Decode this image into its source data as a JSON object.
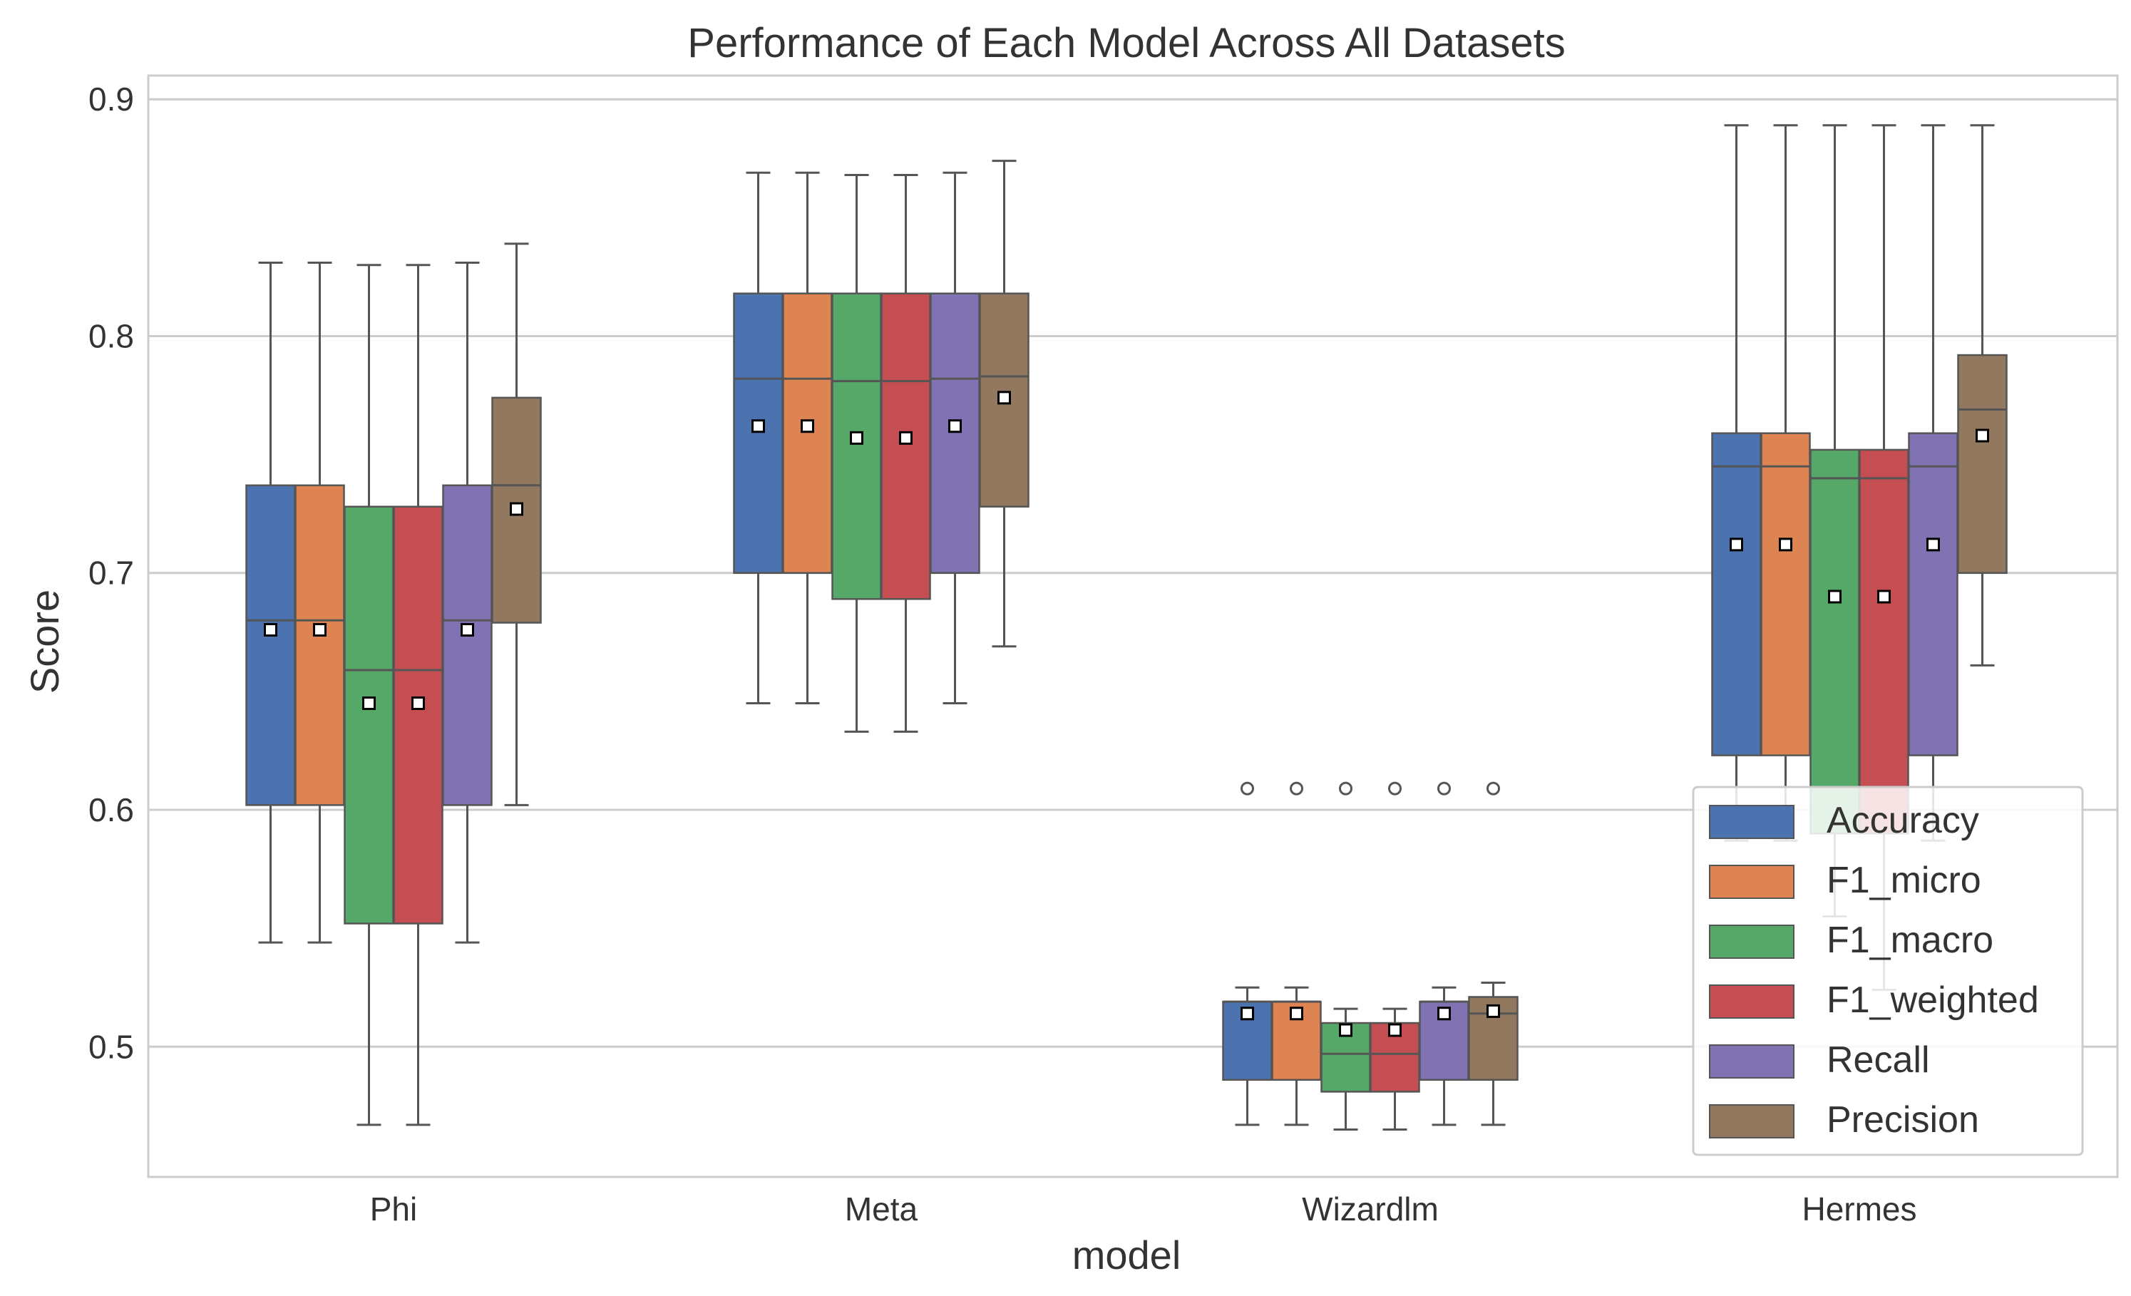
{
  "chart_data": {
    "type": "box",
    "title": "Performance of Each Model Across All Datasets",
    "xlabel": "model",
    "ylabel": "Score",
    "ylim": [
      0.445,
      0.91
    ],
    "yticks": [
      0.5,
      0.6,
      0.7,
      0.8,
      0.9
    ],
    "ytick_labels": [
      "0.5",
      "0.6",
      "0.7",
      "0.8",
      "0.9"
    ],
    "grid": true,
    "legend_position": "bottom-right",
    "categories": [
      "Phi",
      "Meta",
      "Wizardlm",
      "Hermes"
    ],
    "series": [
      {
        "name": "Accuracy",
        "color": "#4c72b0",
        "stats": [
          {
            "whislo": 0.544,
            "q1": 0.602,
            "median": 0.68,
            "q3": 0.737,
            "whishi": 0.831,
            "mean": 0.676,
            "fliers": []
          },
          {
            "whislo": 0.645,
            "q1": 0.7,
            "median": 0.782,
            "q3": 0.818,
            "whishi": 0.869,
            "mean": 0.762,
            "fliers": []
          },
          {
            "whislo": 0.467,
            "q1": 0.486,
            "median": 0.519,
            "q3": 0.519,
            "whishi": 0.525,
            "mean": 0.514,
            "fliers": [
              0.609
            ]
          },
          {
            "whislo": 0.587,
            "q1": 0.623,
            "median": 0.745,
            "q3": 0.759,
            "whishi": 0.889,
            "mean": 0.712,
            "fliers": []
          }
        ]
      },
      {
        "name": "F1_micro",
        "color": "#dd8452",
        "stats": [
          {
            "whislo": 0.544,
            "q1": 0.602,
            "median": 0.68,
            "q3": 0.737,
            "whishi": 0.831,
            "mean": 0.676,
            "fliers": []
          },
          {
            "whislo": 0.645,
            "q1": 0.7,
            "median": 0.782,
            "q3": 0.818,
            "whishi": 0.869,
            "mean": 0.762,
            "fliers": []
          },
          {
            "whislo": 0.467,
            "q1": 0.486,
            "median": 0.519,
            "q3": 0.519,
            "whishi": 0.525,
            "mean": 0.514,
            "fliers": [
              0.609
            ]
          },
          {
            "whislo": 0.587,
            "q1": 0.623,
            "median": 0.745,
            "q3": 0.759,
            "whishi": 0.889,
            "mean": 0.712,
            "fliers": []
          }
        ]
      },
      {
        "name": "F1_macro",
        "color": "#55a868",
        "stats": [
          {
            "whislo": 0.467,
            "q1": 0.552,
            "median": 0.659,
            "q3": 0.728,
            "whishi": 0.83,
            "mean": 0.645,
            "fliers": []
          },
          {
            "whislo": 0.633,
            "q1": 0.689,
            "median": 0.781,
            "q3": 0.818,
            "whishi": 0.868,
            "mean": 0.757,
            "fliers": []
          },
          {
            "whislo": 0.465,
            "q1": 0.481,
            "median": 0.497,
            "q3": 0.51,
            "whishi": 0.516,
            "mean": 0.507,
            "fliers": [
              0.609
            ]
          },
          {
            "whislo": 0.555,
            "q1": 0.59,
            "median": 0.74,
            "q3": 0.752,
            "whishi": 0.889,
            "mean": 0.69,
            "fliers": []
          }
        ]
      },
      {
        "name": "F1_weighted",
        "color": "#c44e52",
        "stats": [
          {
            "whislo": 0.467,
            "q1": 0.552,
            "median": 0.659,
            "q3": 0.728,
            "whishi": 0.83,
            "mean": 0.645,
            "fliers": []
          },
          {
            "whislo": 0.633,
            "q1": 0.689,
            "median": 0.781,
            "q3": 0.818,
            "whishi": 0.868,
            "mean": 0.757,
            "fliers": []
          },
          {
            "whislo": 0.465,
            "q1": 0.481,
            "median": 0.497,
            "q3": 0.51,
            "whishi": 0.516,
            "mean": 0.507,
            "fliers": [
              0.609
            ]
          },
          {
            "whislo": 0.524,
            "q1": 0.59,
            "median": 0.74,
            "q3": 0.752,
            "whishi": 0.889,
            "mean": 0.69,
            "fliers": []
          }
        ]
      },
      {
        "name": "Recall",
        "color": "#8172b3",
        "stats": [
          {
            "whislo": 0.544,
            "q1": 0.602,
            "median": 0.68,
            "q3": 0.737,
            "whishi": 0.831,
            "mean": 0.676,
            "fliers": []
          },
          {
            "whislo": 0.645,
            "q1": 0.7,
            "median": 0.782,
            "q3": 0.818,
            "whishi": 0.869,
            "mean": 0.762,
            "fliers": []
          },
          {
            "whislo": 0.467,
            "q1": 0.486,
            "median": 0.519,
            "q3": 0.519,
            "whishi": 0.525,
            "mean": 0.514,
            "fliers": [
              0.609
            ]
          },
          {
            "whislo": 0.587,
            "q1": 0.623,
            "median": 0.745,
            "q3": 0.759,
            "whishi": 0.889,
            "mean": 0.712,
            "fliers": []
          }
        ]
      },
      {
        "name": "Precision",
        "color": "#937860",
        "stats": [
          {
            "whislo": 0.602,
            "q1": 0.679,
            "median": 0.737,
            "q3": 0.774,
            "whishi": 0.839,
            "mean": 0.727,
            "fliers": []
          },
          {
            "whislo": 0.669,
            "q1": 0.728,
            "median": 0.783,
            "q3": 0.818,
            "whishi": 0.874,
            "mean": 0.774,
            "fliers": []
          },
          {
            "whislo": 0.467,
            "q1": 0.486,
            "median": 0.514,
            "q3": 0.521,
            "whishi": 0.527,
            "mean": 0.515,
            "fliers": [
              0.609
            ]
          },
          {
            "whislo": 0.661,
            "q1": 0.7,
            "median": 0.769,
            "q3": 0.792,
            "whishi": 0.889,
            "mean": 0.758,
            "fliers": []
          }
        ]
      }
    ]
  }
}
